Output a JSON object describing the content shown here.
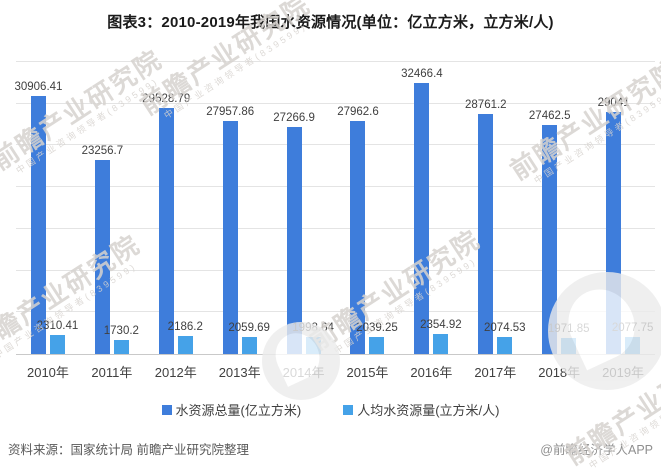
{
  "title": "图表3：2010-2019年我国水资源情况(单位：亿立方米，立方米/人)",
  "chart_data": {
    "type": "bar",
    "title": "图表3：2010-2019年我国水资源情况(单位：亿立方米，立方米/人)",
    "categories": [
      "2010年",
      "2011年",
      "2012年",
      "2013年",
      "2014年",
      "2015年",
      "2016年",
      "2017年",
      "2018年",
      "2019年"
    ],
    "series": [
      {
        "name": "水资源总量(亿立方米)",
        "color": "#3e7ddb",
        "values": [
          30906.41,
          23256.7,
          29528.79,
          27957.86,
          27266.9,
          27962.6,
          32466.4,
          28761.2,
          27462.5,
          29041
        ]
      },
      {
        "name": "人均水资源量(立方米/人)",
        "color": "#45a2e8",
        "values": [
          2310.41,
          1730.2,
          2186.2,
          2059.69,
          1998.64,
          2039.25,
          2354.92,
          2074.53,
          1971.85,
          2077.75
        ]
      }
    ],
    "ylim": [
      0,
      35000
    ],
    "grid_step": 5000,
    "grid": "horizontal",
    "legend_position": "bottom",
    "data_labels": true,
    "xlabel": "",
    "ylabel": ""
  },
  "footer": {
    "source": "资料来源：国家统计局 前瞻产业研究院整理",
    "credit": "@前瞻经济学人APP"
  },
  "watermark": {
    "text": "前瞻产业研究院",
    "subtext": "中国产业咨询领导者(839599)"
  }
}
